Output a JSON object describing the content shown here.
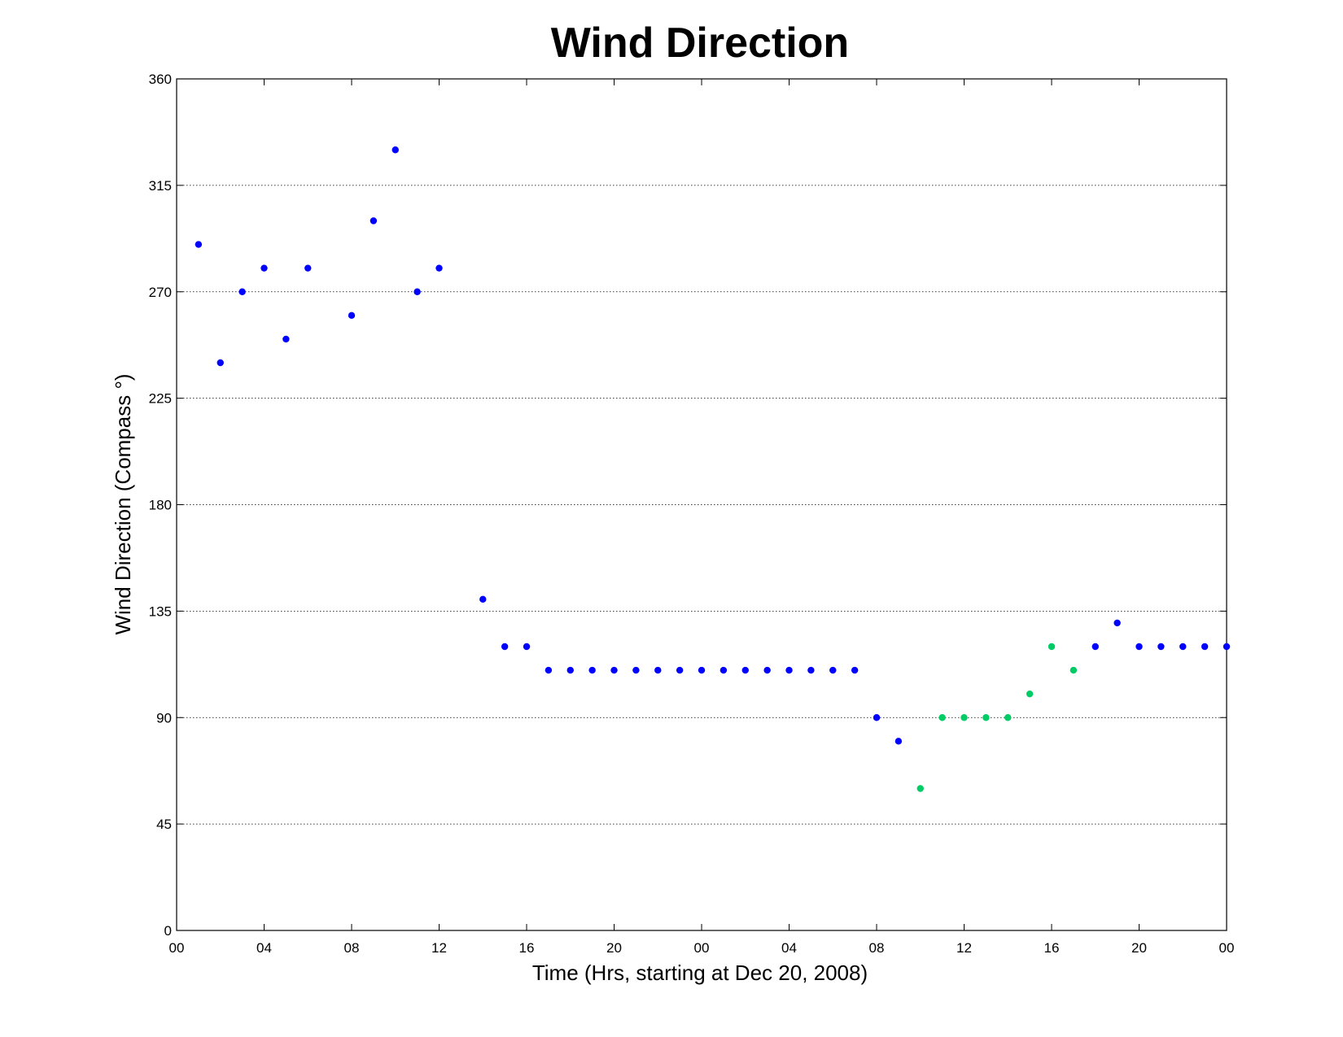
{
  "chart_data": {
    "type": "scatter",
    "title": "Wind Direction",
    "xlabel": "Time (Hrs, starting at Dec 20, 2008)",
    "ylabel": "Wind Direction (Compass  °)",
    "xlim": [
      0,
      48
    ],
    "ylim": [
      0,
      360
    ],
    "x_unit": "hours since Dec 20, 2008 00:00",
    "xticks": [
      {
        "x": 0,
        "label": "00"
      },
      {
        "x": 4,
        "label": "04"
      },
      {
        "x": 8,
        "label": "08"
      },
      {
        "x": 12,
        "label": "12"
      },
      {
        "x": 16,
        "label": "16"
      },
      {
        "x": 20,
        "label": "20"
      },
      {
        "x": 24,
        "label": "00"
      },
      {
        "x": 28,
        "label": "04"
      },
      {
        "x": 32,
        "label": "08"
      },
      {
        "x": 36,
        "label": "12"
      },
      {
        "x": 40,
        "label": "16"
      },
      {
        "x": 44,
        "label": "20"
      },
      {
        "x": 48,
        "label": "00"
      }
    ],
    "yticks": [
      0,
      45,
      90,
      135,
      180,
      225,
      270,
      315,
      360
    ],
    "grid": "horizontal dotted",
    "legend": "none",
    "series": [
      {
        "color": "#0000ff",
        "points": [
          [
            1,
            290
          ],
          [
            2,
            240
          ],
          [
            3,
            270
          ],
          [
            4,
            280
          ],
          [
            5,
            250
          ],
          [
            6,
            280
          ],
          [
            8,
            260
          ],
          [
            9,
            300
          ],
          [
            10,
            330
          ],
          [
            11,
            270
          ],
          [
            12,
            280
          ],
          [
            14,
            140
          ],
          [
            15,
            120
          ],
          [
            16,
            120
          ],
          [
            17,
            110
          ],
          [
            18,
            110
          ],
          [
            19,
            110
          ],
          [
            20,
            110
          ],
          [
            21,
            110
          ],
          [
            22,
            110
          ],
          [
            23,
            110
          ],
          [
            24,
            110
          ],
          [
            25,
            110
          ],
          [
            26,
            110
          ],
          [
            27,
            110
          ],
          [
            28,
            110
          ],
          [
            29,
            110
          ],
          [
            30,
            110
          ],
          [
            31,
            110
          ],
          [
            32,
            90
          ],
          [
            33,
            80
          ],
          [
            42,
            120
          ],
          [
            43,
            130
          ],
          [
            44,
            120
          ],
          [
            45,
            120
          ],
          [
            46,
            120
          ],
          [
            47,
            120
          ],
          [
            48,
            120
          ]
        ]
      },
      {
        "color": "#00cc66",
        "points": [
          [
            34,
            60
          ],
          [
            35,
            90
          ],
          [
            36,
            90
          ],
          [
            37,
            90
          ],
          [
            38,
            90
          ],
          [
            39,
            100
          ],
          [
            40,
            120
          ],
          [
            41,
            110
          ]
        ]
      }
    ]
  }
}
